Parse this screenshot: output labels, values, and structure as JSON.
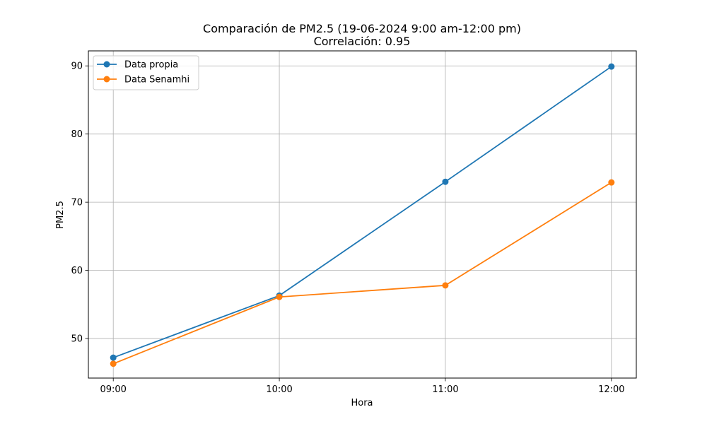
{
  "chart_data": {
    "type": "line",
    "title": "Comparación de PM2.5 (19-06-2024 9:00 am-12:00 pm)",
    "subtitle": "Correlación: 0.95",
    "xlabel": "Hora",
    "ylabel": "PM2.5",
    "categories": [
      "09:00",
      "10:00",
      "11:00",
      "12:00"
    ],
    "ylim": [
      44.2,
      92.2
    ],
    "yticks": [
      50,
      60,
      70,
      80,
      90
    ],
    "grid": true,
    "legend_position": "top-left",
    "series": [
      {
        "name": "Data propia",
        "color": "#1f77b4",
        "values": [
          47.2,
          56.3,
          73.0,
          89.9
        ]
      },
      {
        "name": "Data Senamhi",
        "color": "#ff7f0e",
        "values": [
          46.3,
          56.1,
          57.8,
          72.9
        ]
      }
    ]
  }
}
